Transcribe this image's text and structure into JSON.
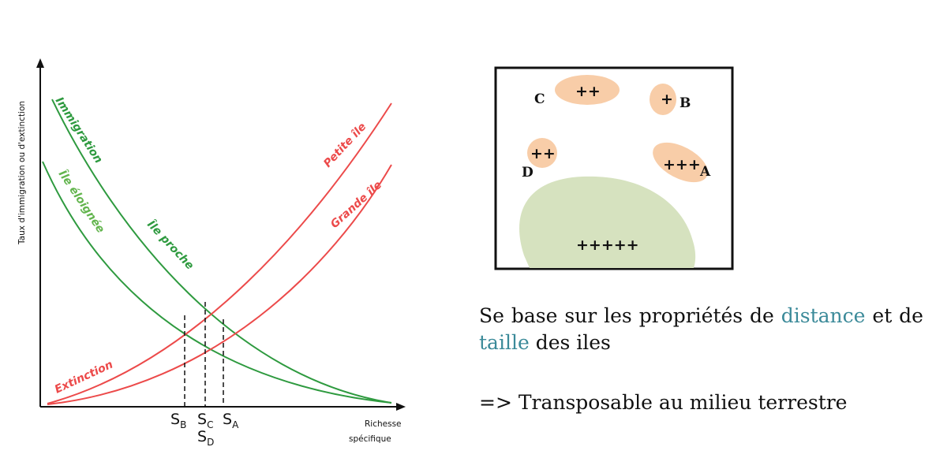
{
  "graph": {
    "y_axis_title": "Taux d'immigration ou d'extinction",
    "x_axis_title_line1": "Richesse",
    "x_axis_title_line2": "spécifique",
    "curves": {
      "immigration": "Immigration",
      "ile_eloignee": "Île éloignée",
      "ile_proche": "Île proche",
      "petite_ile": "Petite île",
      "grande_ile": "Grande île",
      "extinction": "Extinction"
    },
    "equilibria": {
      "sb": {
        "main": "S",
        "sub": "B"
      },
      "sc": {
        "main": "S",
        "sub": "C"
      },
      "sd": {
        "main": "S",
        "sub": "D"
      },
      "sa": {
        "main": "S",
        "sub": "A"
      }
    },
    "colors": {
      "green": "#2e9a3f",
      "light_green": "#63b54e",
      "red": "#ec4a4a"
    }
  },
  "map": {
    "islands": [
      {
        "letter": "C",
        "signs": "++"
      },
      {
        "letter": "B",
        "signs": "+"
      },
      {
        "letter": "D",
        "signs": "++"
      },
      {
        "letter": "A",
        "signs": "+++"
      }
    ],
    "mainland": {
      "signs": "+++++"
    },
    "colors": {
      "island": "#f8cda8",
      "mainland": "#d6e2bf"
    }
  },
  "text": {
    "sentence_part1": "Se base sur les propriétés de",
    "kw_distance": "distance",
    "sentence_part2": "et de",
    "kw_taille": "taille",
    "sentence_part3": "des iles",
    "conclusion": "=> Transposable au milieu terrestre"
  }
}
